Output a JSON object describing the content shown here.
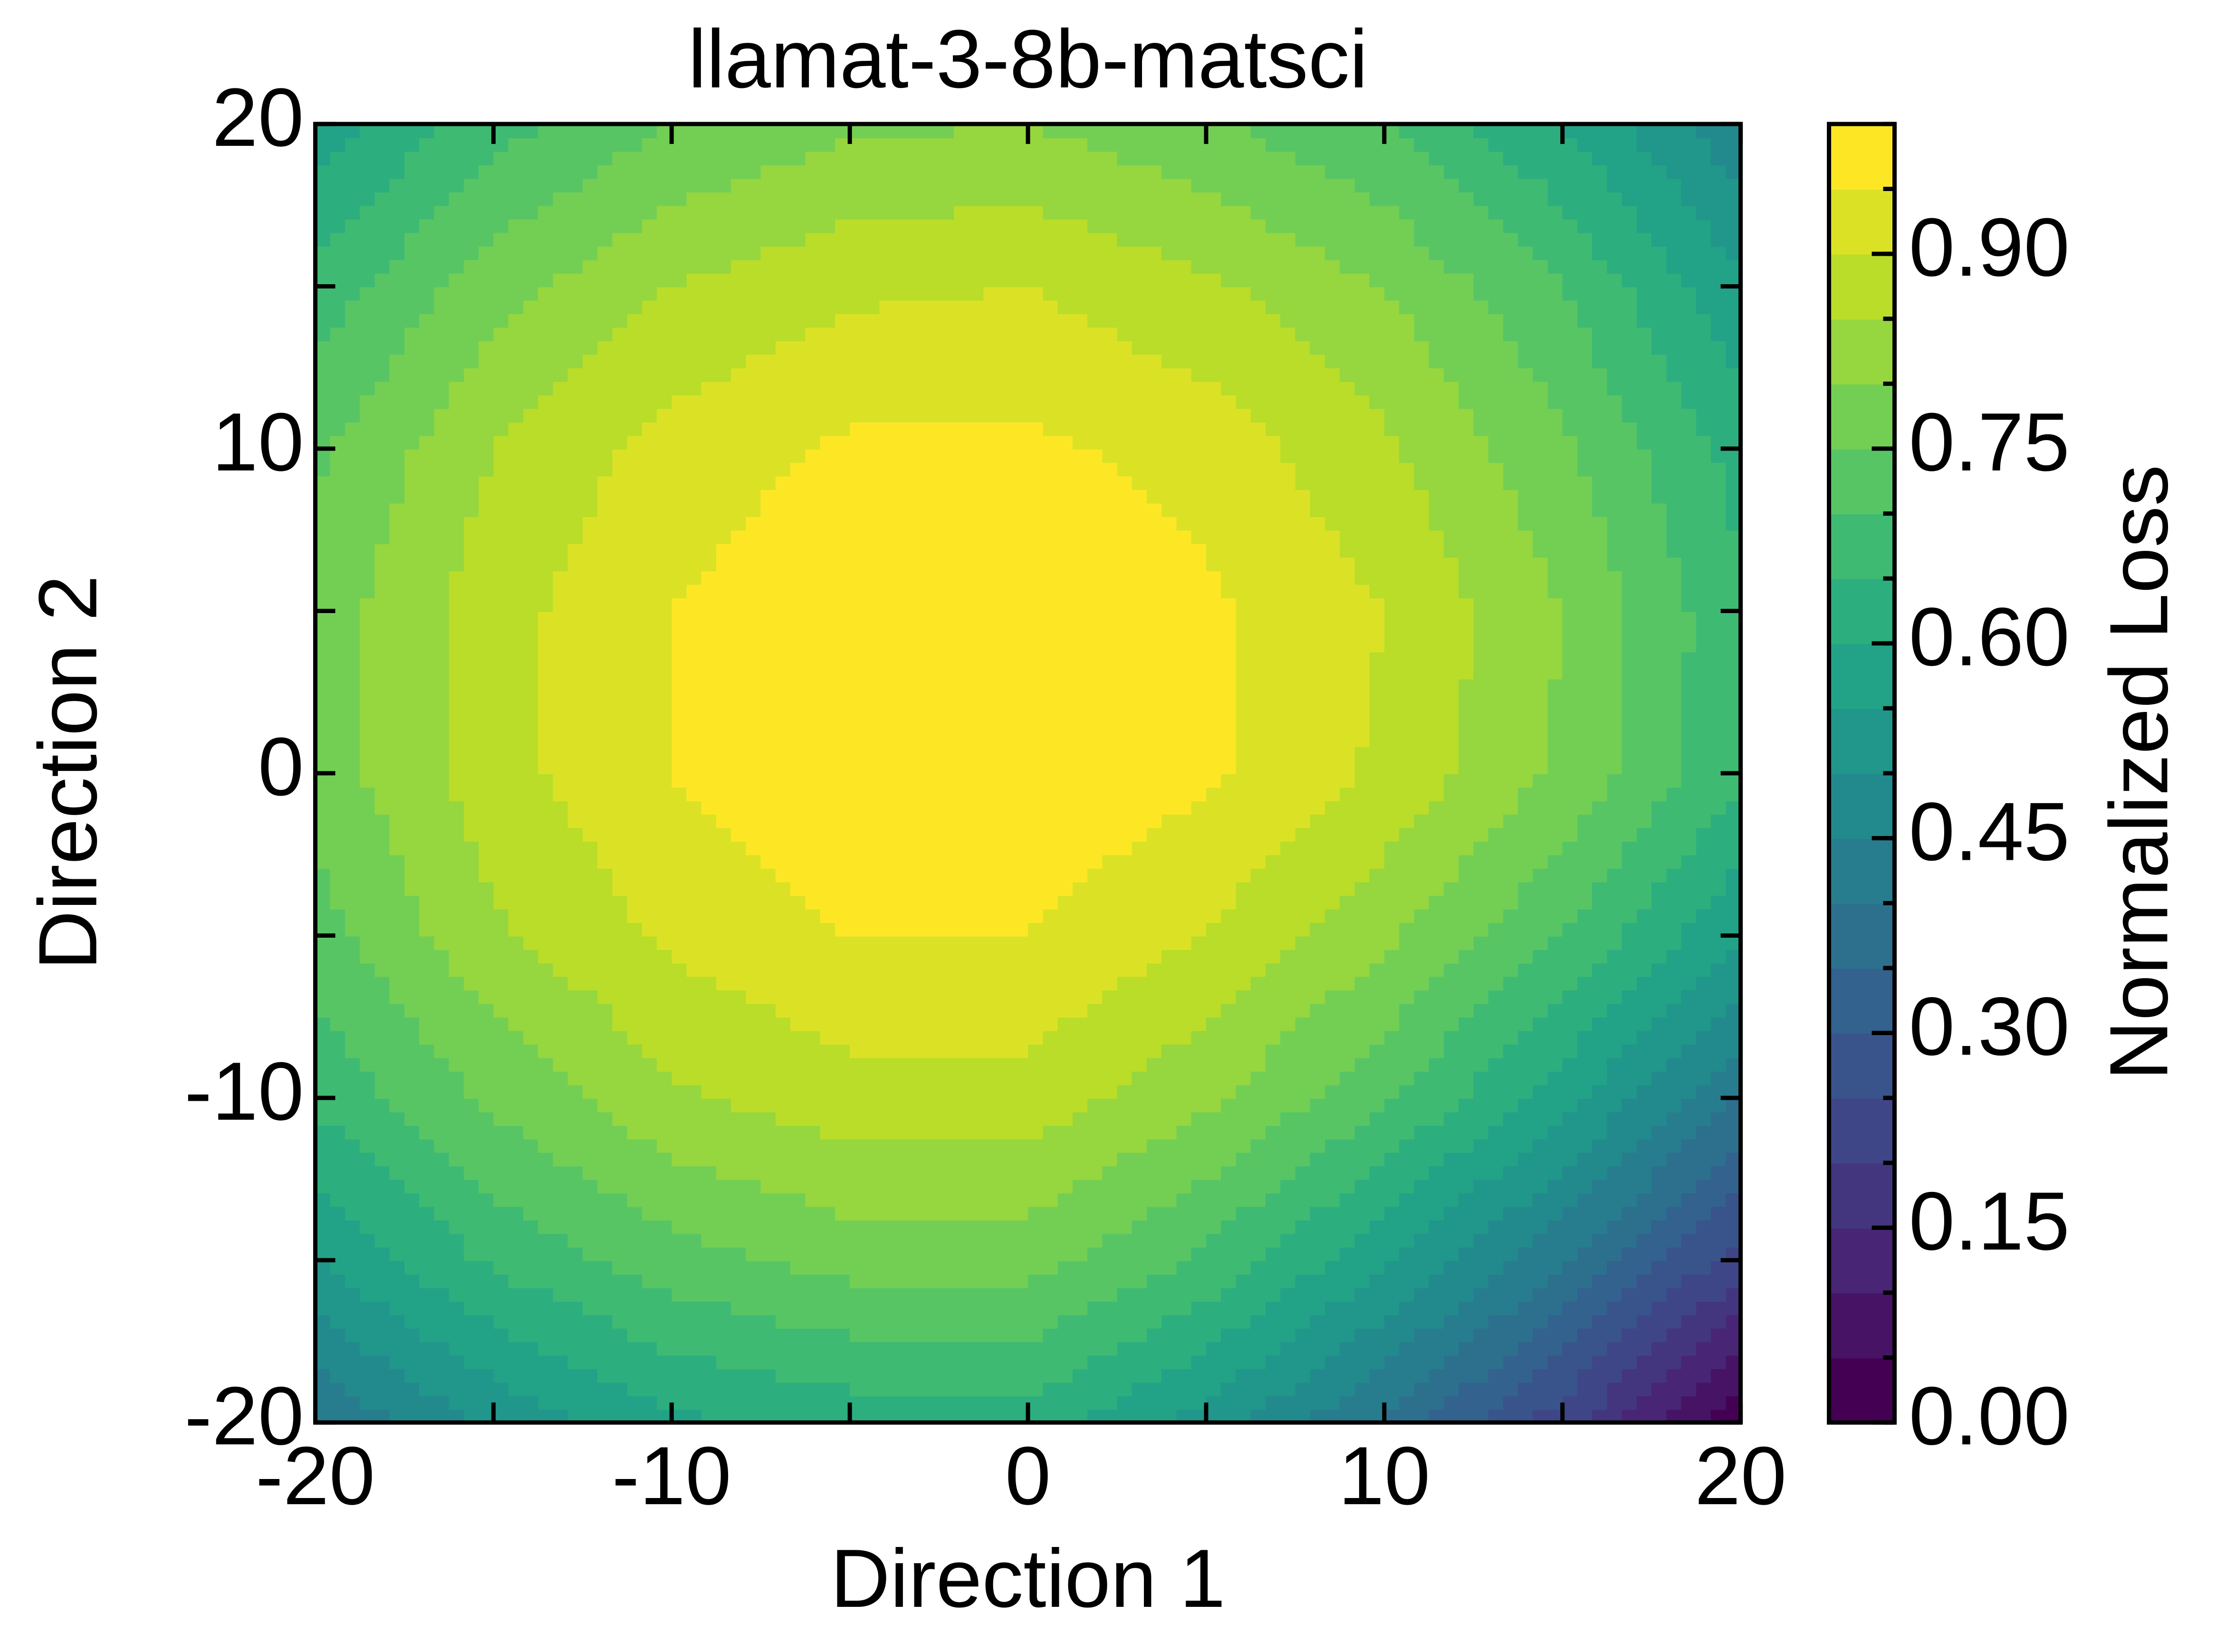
{
  "chart_data": {
    "type": "contour",
    "title": "llamat-3-8b-matsci",
    "x_label": "Direction 1",
    "y_label": "Direction 2",
    "colorbar_label": "Normalized Loss",
    "colormap": "viridis",
    "x": [
      -20,
      -15,
      -10,
      -5,
      0,
      5,
      10,
      15,
      20
    ],
    "y": [
      -20,
      -15,
      -10,
      -5,
      0,
      5,
      10,
      15,
      20
    ],
    "z": [
      [
        0.4,
        0.51,
        0.59,
        0.62,
        0.63,
        0.53,
        0.39,
        0.22,
        0.01
      ],
      [
        0.55,
        0.66,
        0.73,
        0.77,
        0.77,
        0.69,
        0.56,
        0.41,
        0.22
      ],
      [
        0.66,
        0.76,
        0.84,
        0.88,
        0.88,
        0.81,
        0.71,
        0.57,
        0.4
      ],
      [
        0.73,
        0.84,
        0.91,
        0.95,
        0.95,
        0.9,
        0.81,
        0.7,
        0.55
      ],
      [
        0.77,
        0.88,
        0.95,
        0.99,
        0.99,
        0.96,
        0.89,
        0.79,
        0.66
      ],
      [
        0.77,
        0.88,
        0.95,
        0.99,
        0.99,
        0.96,
        0.9,
        0.8,
        0.66
      ],
      [
        0.74,
        0.85,
        0.92,
        0.96,
        0.96,
        0.93,
        0.86,
        0.76,
        0.63
      ],
      [
        0.67,
        0.78,
        0.85,
        0.89,
        0.9,
        0.86,
        0.8,
        0.7,
        0.56
      ],
      [
        0.57,
        0.68,
        0.75,
        0.79,
        0.8,
        0.76,
        0.7,
        0.6,
        0.46
      ]
    ],
    "levels": [
      0,
      0.05,
      0.1,
      0.15,
      0.2,
      0.25,
      0.3,
      0.35,
      0.4,
      0.45,
      0.5,
      0.55,
      0.6,
      0.65,
      0.7,
      0.75,
      0.8,
      0.85,
      0.9,
      0.95,
      1.0
    ],
    "xlim": [
      -20,
      20
    ],
    "ylim": [
      -20,
      20
    ],
    "xticks": [
      -20,
      -10,
      0,
      10,
      20
    ],
    "yticks": [
      -20,
      -10,
      0,
      10,
      20
    ],
    "xminorticks": [
      -15,
      -5,
      5,
      15
    ],
    "yminorticks": [
      -15,
      -5,
      5,
      15
    ],
    "colorbar_ticks": [
      {
        "value": 0,
        "label": "0.00"
      },
      {
        "value": 0.15,
        "label": "0.15"
      },
      {
        "value": 0.3,
        "label": "0.30"
      },
      {
        "value": 0.45,
        "label": "0.45"
      },
      {
        "value": 0.6,
        "label": "0.60"
      },
      {
        "value": 0.75,
        "label": "0.75"
      },
      {
        "value": 0.9,
        "label": "0.90"
      }
    ]
  }
}
